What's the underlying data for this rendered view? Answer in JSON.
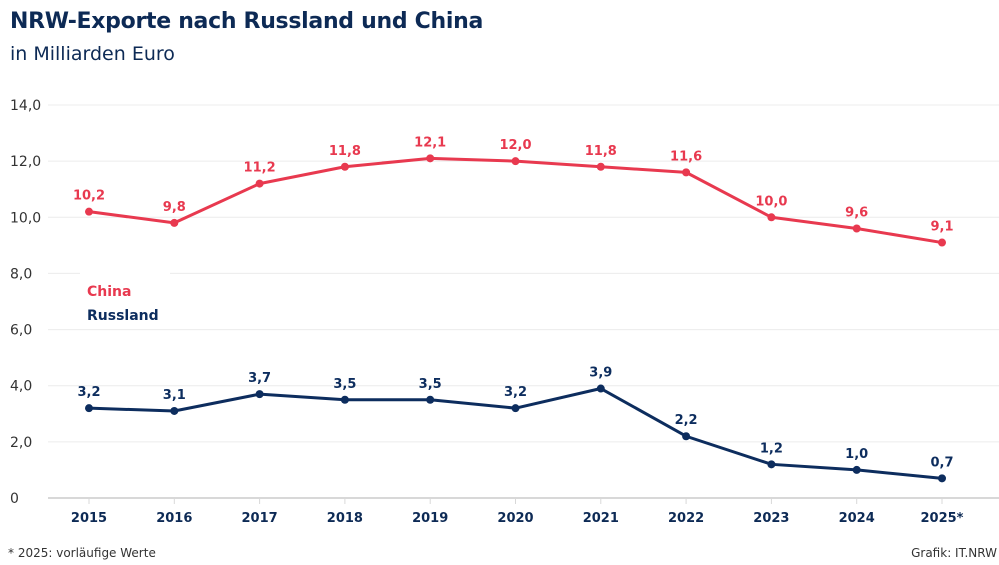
{
  "chart_data": {
    "type": "line",
    "title": "NRW-Exporte nach Russland und China",
    "subtitle": "in Milliarden Euro",
    "xlabel": "",
    "ylabel": "",
    "ylim": [
      0,
      14
    ],
    "grid": true,
    "yticks": [
      "0",
      "2,0",
      "4,0",
      "6,0",
      "8,0",
      "10,0",
      "12,0",
      "14,0"
    ],
    "categories": [
      "2015",
      "2016",
      "2017",
      "2018",
      "2019",
      "2020",
      "2021",
      "2022",
      "2023",
      "2024",
      "2025*"
    ],
    "series": [
      {
        "name": "China",
        "color": "#e8394f",
        "values": [
          10.2,
          9.8,
          11.2,
          11.8,
          12.1,
          12.0,
          11.8,
          11.6,
          10.0,
          9.6,
          9.1
        ],
        "labels": [
          "10,2",
          "9,8",
          "11,2",
          "11,8",
          "12,1",
          "12,0",
          "11,8",
          "11,6",
          "10,0",
          "9,6",
          "9,1"
        ]
      },
      {
        "name": "Russland",
        "color": "#0d2d5e",
        "values": [
          3.2,
          3.1,
          3.7,
          3.5,
          3.5,
          3.2,
          3.9,
          2.2,
          1.2,
          1.0,
          0.7
        ],
        "labels": [
          "3,2",
          "3,1",
          "3,7",
          "3,5",
          "3,5",
          "3,2",
          "3,9",
          "2,2",
          "1,2",
          "1,0",
          "0,7"
        ]
      }
    ],
    "legend": "left-middle",
    "footnote": "*  2025: vorläufige Werte",
    "source": "Grafik: IT.NRW"
  }
}
